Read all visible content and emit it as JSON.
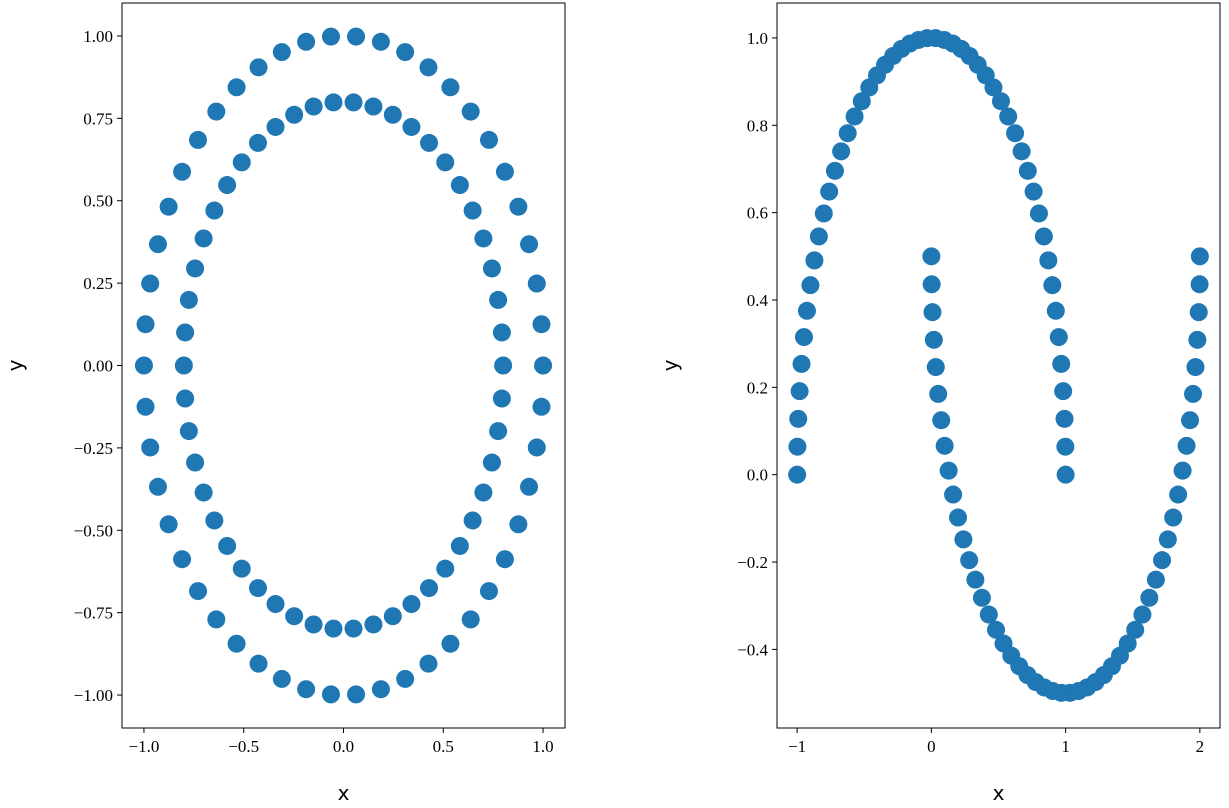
{
  "chart_data": [
    {
      "type": "scatter",
      "color": "#1f77b4",
      "x_label": "x",
      "y_label": "y",
      "xlim": [
        -1.11,
        1.11
      ],
      "ylim": [
        -1.1,
        1.1
      ],
      "xticks": [
        {
          "value": -1.0,
          "label": "−1.0"
        },
        {
          "value": -0.5,
          "label": "−0.5"
        },
        {
          "value": 0.0,
          "label": "0.0"
        },
        {
          "value": 0.5,
          "label": "0.5"
        },
        {
          "value": 1.0,
          "label": "1.0"
        }
      ],
      "yticks": [
        {
          "value": -1.0,
          "label": "−1.00"
        },
        {
          "value": -0.75,
          "label": "−0.75"
        },
        {
          "value": -0.5,
          "label": "−0.50"
        },
        {
          "value": -0.25,
          "label": "−0.25"
        },
        {
          "value": 0.0,
          "label": "0.00"
        },
        {
          "value": 0.25,
          "label": "0.25"
        },
        {
          "value": 0.5,
          "label": "0.50"
        },
        {
          "value": 0.75,
          "label": "0.75"
        },
        {
          "value": 1.0,
          "label": "1.00"
        }
      ],
      "x": [
        1,
        0.9921,
        0.9686,
        0.9298,
        0.8763,
        0.809,
        0.729,
        0.6374,
        0.5358,
        0.4258,
        0.309,
        0.1874,
        0.0628,
        -0.0628,
        -0.1874,
        -0.309,
        -0.4258,
        -0.5358,
        -0.6374,
        -0.729,
        -0.809,
        -0.8763,
        -0.9298,
        -0.9686,
        -0.9921,
        -1,
        -0.9921,
        -0.9686,
        -0.9298,
        -0.8763,
        -0.809,
        -0.729,
        -0.6374,
        -0.5358,
        -0.4258,
        -0.309,
        -0.1874,
        -0.0628,
        0.0628,
        0.1874,
        0.309,
        0.4258,
        0.5358,
        0.6374,
        0.729,
        0.809,
        0.8763,
        0.9298,
        0.9686,
        0.9921,
        0.8,
        0.7937,
        0.7749,
        0.7438,
        0.701,
        0.6472,
        0.5832,
        0.5099,
        0.4286,
        0.3406,
        0.2472,
        0.1499,
        0.0502,
        -0.0502,
        -0.1499,
        -0.2472,
        -0.3406,
        -0.4286,
        -0.5099,
        -0.5832,
        -0.6472,
        -0.701,
        -0.7438,
        -0.7749,
        -0.7937,
        -0.8,
        -0.7937,
        -0.7749,
        -0.7438,
        -0.701,
        -0.6472,
        -0.5832,
        -0.5099,
        -0.4286,
        -0.3406,
        -0.2472,
        -0.1499,
        -0.0502,
        0.0502,
        0.1499,
        0.2472,
        0.3406,
        0.4286,
        0.5099,
        0.5832,
        0.6472,
        0.701,
        0.7438,
        0.7749,
        0.7937
      ],
      "values": [
        0,
        0.1253,
        0.2487,
        0.3681,
        0.4818,
        0.5878,
        0.6845,
        0.7705,
        0.8443,
        0.9048,
        0.9511,
        0.9823,
        0.998,
        0.998,
        0.9823,
        0.9511,
        0.9048,
        0.8443,
        0.7705,
        0.6845,
        0.5878,
        0.4818,
        0.3681,
        0.2487,
        0.1253,
        0,
        -0.1253,
        -0.2487,
        -0.3681,
        -0.4818,
        -0.5878,
        -0.6845,
        -0.7705,
        -0.8443,
        -0.9048,
        -0.9511,
        -0.9823,
        -0.998,
        -0.998,
        -0.9823,
        -0.9511,
        -0.9048,
        -0.8443,
        -0.7705,
        -0.6845,
        -0.5878,
        -0.4818,
        -0.3681,
        -0.2487,
        -0.1253,
        0,
        0.1002,
        0.199,
        0.2945,
        0.3854,
        0.4702,
        0.5476,
        0.6164,
        0.6754,
        0.7238,
        0.7608,
        0.7858,
        0.7984,
        0.7984,
        0.7858,
        0.7608,
        0.7238,
        0.6754,
        0.6164,
        0.5476,
        0.4702,
        0.3854,
        0.2945,
        0.199,
        0.1002,
        0,
        -0.1002,
        -0.199,
        -0.2945,
        -0.3854,
        -0.4702,
        -0.5476,
        -0.6164,
        -0.6754,
        -0.7238,
        -0.7608,
        -0.7858,
        -0.7984,
        -0.7984,
        -0.7858,
        -0.7608,
        -0.7238,
        -0.6754,
        -0.6164,
        -0.5476,
        -0.4702,
        -0.3854,
        -0.2945,
        -0.199,
        -0.1002
      ]
    },
    {
      "type": "scatter",
      "color": "#1f77b4",
      "x_label": "x",
      "y_label": "y",
      "xlim": [
        -1.15,
        2.15
      ],
      "ylim": [
        -0.58,
        1.08
      ],
      "xticks": [
        {
          "value": -1,
          "label": "−1"
        },
        0,
        1,
        2
      ],
      "yticks": [
        {
          "value": -0.4,
          "label": "−0.4"
        },
        {
          "value": -0.2,
          "label": "−0.2"
        },
        {
          "value": 0.0,
          "label": "0.0"
        },
        0.2,
        0.4,
        0.6,
        0.8,
        {
          "value": 1.0,
          "label": "1.0"
        }
      ],
      "x": [
        1,
        0.998,
        0.9918,
        0.9816,
        0.9673,
        0.9491,
        0.9269,
        0.901,
        0.8713,
        0.8381,
        0.8014,
        0.7614,
        0.7183,
        0.6723,
        0.6235,
        0.5721,
        0.5184,
        0.4625,
        0.4048,
        0.3454,
        0.2845,
        0.2225,
        0.1596,
        0.096,
        0.0321,
        -0.0321,
        -0.096,
        -0.1596,
        -0.2225,
        -0.2845,
        -0.3454,
        -0.4048,
        -0.4625,
        -0.5184,
        -0.5721,
        -0.6235,
        -0.6723,
        -0.7183,
        -0.7614,
        -0.8014,
        -0.8381,
        -0.8713,
        -0.901,
        -0.9269,
        -0.9491,
        -0.9673,
        -0.9816,
        -0.9918,
        -0.998,
        -1,
        0,
        0.002,
        0.0082,
        0.0184,
        0.0327,
        0.0509,
        0.0731,
        0.099,
        0.1287,
        0.1619,
        0.1986,
        0.2386,
        0.2817,
        0.3277,
        0.3765,
        0.4279,
        0.4816,
        0.5375,
        0.5952,
        0.6546,
        0.7155,
        0.7775,
        0.8404,
        0.904,
        0.9679,
        1.0321,
        1.096,
        1.1596,
        1.2225,
        1.2845,
        1.3454,
        1.4048,
        1.4625,
        1.5184,
        1.5721,
        1.6235,
        1.6723,
        1.7183,
        1.7614,
        1.8014,
        1.8381,
        1.8713,
        1.901,
        1.9269,
        1.9491,
        1.9673,
        1.9816,
        1.9918,
        1.998,
        2
      ],
      "values": [
        0,
        0.0641,
        0.1279,
        0.1912,
        0.2537,
        0.3151,
        0.3753,
        0.4339,
        0.4907,
        0.5455,
        0.5981,
        0.6482,
        0.6957,
        0.7403,
        0.7818,
        0.8202,
        0.8551,
        0.8866,
        0.9144,
        0.9385,
        0.9587,
        0.9749,
        0.9872,
        0.9954,
        0.9995,
        0.9995,
        0.9954,
        0.9872,
        0.9749,
        0.9587,
        0.9385,
        0.9144,
        0.8866,
        0.8551,
        0.8202,
        0.7818,
        0.7403,
        0.6957,
        0.6482,
        0.5981,
        0.5455,
        0.4907,
        0.4339,
        0.3753,
        0.3151,
        0.2537,
        0.1912,
        0.1279,
        0.0641,
        0,
        0.5,
        0.4359,
        0.3721,
        0.3088,
        0.2463,
        0.1849,
        0.1247,
        0.0661,
        0.0093,
        -0.0455,
        -0.0981,
        -0.1482,
        -0.1957,
        -0.2403,
        -0.2818,
        -0.3202,
        -0.3551,
        -0.3866,
        -0.4144,
        -0.4385,
        -0.4587,
        -0.4749,
        -0.4872,
        -0.4954,
        -0.4995,
        -0.4995,
        -0.4954,
        -0.4872,
        -0.4749,
        -0.4587,
        -0.4385,
        -0.4144,
        -0.3866,
        -0.3551,
        -0.3202,
        -0.2818,
        -0.2403,
        -0.1957,
        -0.1482,
        -0.0981,
        -0.0455,
        0.0093,
        0.0661,
        0.1247,
        0.1849,
        0.2463,
        0.3088,
        0.3721,
        0.4359,
        0.5
      ]
    }
  ]
}
